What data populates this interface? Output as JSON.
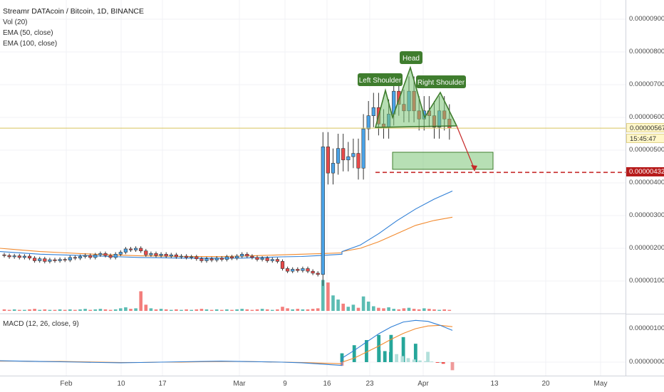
{
  "header": {
    "title": "Streamr DATAcoin / Bitcoin, 1D, BINANCE",
    "indicators": [
      "Vol (20)",
      "EMA (50, close)",
      "EMA (100, close)"
    ]
  },
  "macd_pane": {
    "label": "MACD (12, 26, close, 9)"
  },
  "price_axis": {
    "ticks": [
      "0.00000900",
      "0.00000800",
      "0.00000700",
      "0.00000600",
      "0.00000500",
      "0.00000400",
      "0.00000300",
      "0.00000200",
      "0.00000100"
    ],
    "current_price": "0.00000567",
    "countdown": "15:45:47",
    "target_price": "0.00000432",
    "macd_ticks": [
      "0.00000100",
      "0.00000000"
    ]
  },
  "time_axis": {
    "ticks": [
      "Feb",
      "10",
      "17",
      "Mar",
      "9",
      "16",
      "23",
      "Apr",
      "13",
      "20",
      "May"
    ]
  },
  "annotations": {
    "left_shoulder": "Left Shoulder",
    "head": "Head",
    "right_shoulder": "Right Shoulder"
  },
  "colors": {
    "up": "#4aa3e8",
    "down": "#e84a4a",
    "vol_up": "#26a69a",
    "vol_down": "#ef5350",
    "ema50": "#2f7fd6",
    "ema100": "#f28a2e",
    "pattern": "#3f7d2e",
    "target_line": "#c62828"
  },
  "chart_data": {
    "type": "candlestick",
    "title": "Streamr DATAcoin / Bitcoin, 1D, BINANCE",
    "xlabel": "",
    "ylabel": "",
    "ylim": [
      1e-07,
      9e-07
    ],
    "current_price": 5.67e-06,
    "target_price": 4.32e-06,
    "candles": [
      [
        1.8,
        1.78
      ],
      [
        1.78,
        1.74
      ],
      [
        1.74,
        1.77
      ],
      [
        1.77,
        1.72
      ],
      [
        1.72,
        1.76
      ],
      [
        1.76,
        1.7
      ],
      [
        1.7,
        1.62
      ],
      [
        1.62,
        1.68
      ],
      [
        1.68,
        1.6
      ],
      [
        1.6,
        1.65
      ],
      [
        1.65,
        1.62
      ],
      [
        1.62,
        1.66
      ],
      [
        1.66,
        1.64
      ],
      [
        1.64,
        1.72
      ],
      [
        1.72,
        1.7
      ],
      [
        1.7,
        1.75
      ],
      [
        1.75,
        1.78
      ],
      [
        1.78,
        1.72
      ],
      [
        1.72,
        1.8
      ],
      [
        1.8,
        1.84
      ],
      [
        1.84,
        1.78
      ],
      [
        1.78,
        1.72
      ],
      [
        1.72,
        1.82
      ],
      [
        1.82,
        1.88
      ],
      [
        1.88,
        1.98
      ],
      [
        1.98,
        1.95
      ],
      [
        1.95,
        2.0
      ],
      [
        2.0,
        1.92
      ],
      [
        1.92,
        1.8
      ],
      [
        1.8,
        1.84
      ],
      [
        1.84,
        1.78
      ],
      [
        1.78,
        1.82
      ],
      [
        1.82,
        1.76
      ],
      [
        1.76,
        1.8
      ],
      [
        1.8,
        1.74
      ],
      [
        1.74,
        1.76
      ],
      [
        1.76,
        1.72
      ],
      [
        1.72,
        1.74
      ],
      [
        1.74,
        1.68
      ],
      [
        1.68,
        1.62
      ],
      [
        1.62,
        1.68
      ],
      [
        1.68,
        1.64
      ],
      [
        1.64,
        1.7
      ],
      [
        1.7,
        1.66
      ],
      [
        1.66,
        1.74
      ],
      [
        1.74,
        1.7
      ],
      [
        1.7,
        1.76
      ],
      [
        1.76,
        1.82
      ],
      [
        1.82,
        1.76
      ],
      [
        1.76,
        1.72
      ],
      [
        1.72,
        1.66
      ],
      [
        1.66,
        1.7
      ],
      [
        1.7,
        1.62
      ],
      [
        1.62,
        1.66
      ],
      [
        1.66,
        1.6
      ],
      [
        1.6,
        1.38
      ],
      [
        1.38,
        1.3
      ],
      [
        1.3,
        1.36
      ],
      [
        1.36,
        1.32
      ],
      [
        1.32,
        1.38
      ],
      [
        1.38,
        1.3
      ],
      [
        1.3,
        1.24
      ],
      [
        1.24,
        1.2
      ],
      [
        1.2,
        5.1
      ],
      [
        5.1,
        4.3
      ],
      [
        4.3,
        4.6
      ],
      [
        4.6,
        5.05
      ],
      [
        5.05,
        4.7
      ],
      [
        4.7,
        4.8
      ],
      [
        4.8,
        4.9
      ],
      [
        4.9,
        4.45
      ],
      [
        4.45,
        5.65
      ],
      [
        5.65,
        6.05
      ],
      [
        6.05,
        6.3
      ],
      [
        6.3,
        5.8
      ],
      [
        5.8,
        5.7
      ],
      [
        5.7,
        6.1
      ],
      [
        6.1,
        6.8
      ],
      [
        6.8,
        6.4
      ],
      [
        6.4,
        6.2
      ],
      [
        6.2,
        6.8
      ],
      [
        6.8,
        6.2
      ],
      [
        6.2,
        5.95
      ],
      [
        5.95,
        6.2
      ],
      [
        6.2,
        6.05
      ],
      [
        6.05,
        5.7
      ],
      [
        5.7,
        6.2
      ],
      [
        6.2,
        5.95
      ],
      [
        5.95,
        5.67
      ]
    ],
    "volume": [
      3,
      2,
      3,
      2,
      2,
      3,
      4,
      2,
      3,
      2,
      2,
      3,
      2,
      3,
      2,
      3,
      4,
      2,
      3,
      4,
      3,
      2,
      3,
      5,
      7,
      4,
      5,
      38,
      12,
      5,
      3,
      4,
      3,
      2,
      3,
      2,
      3,
      2,
      3,
      4,
      3,
      2,
      3,
      2,
      3,
      2,
      3,
      4,
      3,
      2,
      3,
      4,
      3,
      2,
      3,
      8,
      5,
      3,
      4,
      3,
      3,
      4,
      5,
      60,
      55,
      30,
      22,
      14,
      8,
      12,
      6,
      28,
      18,
      9,
      6,
      5,
      7,
      4,
      3,
      5,
      6,
      4,
      3,
      5,
      4,
      3,
      2,
      3,
      2
    ],
    "ema50": [
      1.9,
      1.86,
      1.82,
      1.8,
      1.78,
      1.76,
      1.74,
      1.72,
      1.71,
      1.7,
      1.7,
      1.7,
      1.7,
      1.72,
      1.74,
      1.75,
      1.78,
      1.82,
      1.9,
      2.1,
      2.45,
      2.85,
      3.2,
      3.5,
      3.75
    ],
    "ema100": [
      2.0,
      1.95,
      1.9,
      1.87,
      1.84,
      1.81,
      1.79,
      1.77,
      1.76,
      1.75,
      1.75,
      1.75,
      1.76,
      1.78,
      1.8,
      1.82,
      1.84,
      1.86,
      1.9,
      2.0,
      2.2,
      2.45,
      2.7,
      2.85,
      2.95
    ],
    "macd": [
      0.04,
      0.03,
      0.02,
      0.01,
      0.0,
      -0.01,
      -0.02,
      -0.01,
      0.0,
      0.01,
      0.02,
      0.03,
      0.02,
      0.01,
      0.0,
      -0.02,
      -0.06,
      -0.1,
      0.12,
      0.35,
      0.6,
      0.85,
      1.05,
      1.2,
      1.25,
      1.22,
      1.1,
      0.95
    ],
    "signal": [
      0.03,
      0.03,
      0.02,
      0.02,
      0.01,
      0.0,
      -0.01,
      -0.01,
      0.0,
      0.0,
      0.01,
      0.02,
      0.02,
      0.01,
      0.0,
      -0.01,
      -0.03,
      -0.05,
      0.0,
      0.12,
      0.3,
      0.48,
      0.68,
      0.86,
      1.0,
      1.08,
      1.1,
      1.06
    ],
    "x_ticks": [
      "Feb",
      "10",
      "17",
      "Mar",
      "9",
      "16",
      "23",
      "Apr",
      "13",
      "20",
      "May"
    ]
  }
}
